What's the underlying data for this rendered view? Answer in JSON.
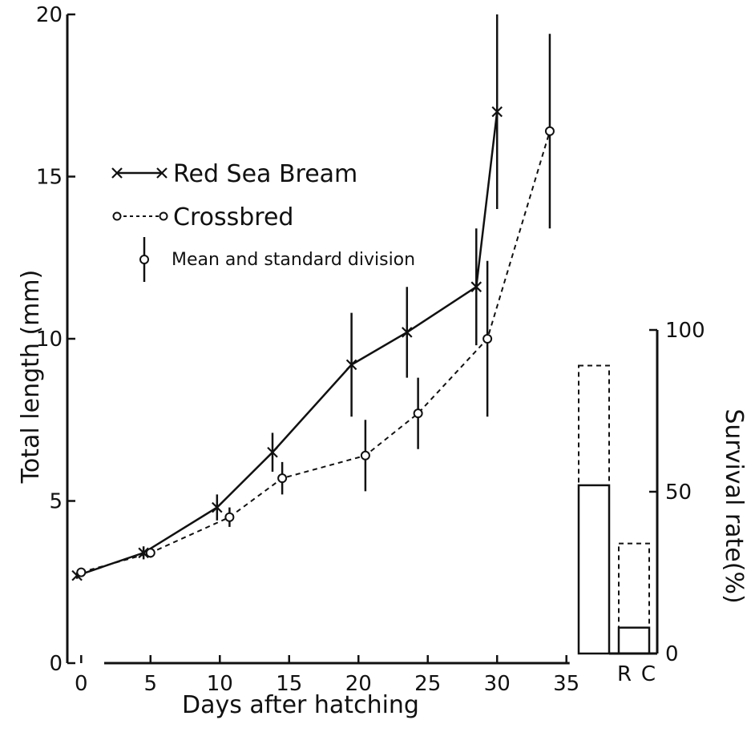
{
  "chart_data": [
    {
      "type": "line",
      "xlabel": "Days after hatching",
      "ylabel": "Total length (mm)",
      "xlim": [
        -1,
        36
      ],
      "ylim": [
        0,
        20
      ],
      "xticks": [
        0,
        5,
        10,
        15,
        20,
        25,
        30,
        35
      ],
      "yticks": [
        0,
        5,
        10,
        15,
        20
      ],
      "grid": false,
      "legend_position": "upper-left",
      "legend_note": "Mean and standard division",
      "series": [
        {
          "name": "Red Sea Bream",
          "marker": "x",
          "line_style": "solid",
          "x": [
            -0.3,
            4.5,
            9.8,
            13.8,
            19.5,
            23.5,
            28.5,
            30
          ],
          "y": [
            2.7,
            3.4,
            4.8,
            6.5,
            9.2,
            10.2,
            11.6,
            17.0
          ],
          "sd": [
            0.1,
            0.2,
            0.4,
            0.6,
            1.6,
            1.4,
            1.8,
            3.0
          ]
        },
        {
          "name": "Crossbred",
          "marker": "o",
          "line_style": "dashed",
          "x": [
            0,
            5,
            10.7,
            14.5,
            20.5,
            24.3,
            29.3,
            33.8
          ],
          "y": [
            2.8,
            3.4,
            4.5,
            5.7,
            6.4,
            7.7,
            10.0,
            16.4
          ],
          "sd": [
            0.1,
            0.15,
            0.3,
            0.5,
            1.1,
            1.1,
            2.4,
            3.0
          ]
        }
      ]
    },
    {
      "type": "bar",
      "ylabel": "Survival rate(%)",
      "ylim": [
        0,
        100
      ],
      "yticks": [
        0,
        50,
        100
      ],
      "categories": [
        "R",
        "C"
      ],
      "series": [
        {
          "line_style": "dashed",
          "values": [
            89,
            34
          ]
        },
        {
          "line_style": "solid",
          "values": [
            52,
            8
          ]
        }
      ]
    }
  ]
}
